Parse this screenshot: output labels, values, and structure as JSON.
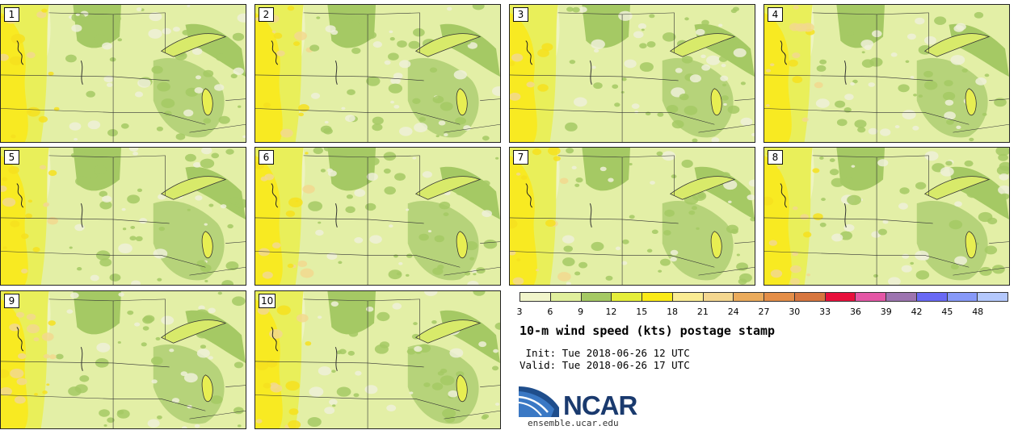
{
  "panels": [
    {
      "label": "1",
      "seed": 11
    },
    {
      "label": "2",
      "seed": 23
    },
    {
      "label": "3",
      "seed": 37
    },
    {
      "label": "4",
      "seed": 41
    },
    {
      "label": "5",
      "seed": 53
    },
    {
      "label": "6",
      "seed": 67
    },
    {
      "label": "7",
      "seed": 71
    },
    {
      "label": "8",
      "seed": 89
    },
    {
      "label": "9",
      "seed": 97
    },
    {
      "label": "10",
      "seed": 103
    }
  ],
  "colorbar": {
    "colors": [
      "#f1f5cb",
      "#e0ef9d",
      "#a5c964",
      "#e5ee3a",
      "#fbeb17",
      "#faec93",
      "#f4d790",
      "#ebab5c",
      "#e48e48",
      "#d7763f",
      "#e8103c",
      "#e457a6",
      "#9d74b0",
      "#6969f5",
      "#8799f8",
      "#b4c8fc"
    ],
    "ticks": [
      "3",
      "6",
      "9",
      "12",
      "15",
      "18",
      "21",
      "24",
      "27",
      "30",
      "33",
      "36",
      "39",
      "42",
      "45",
      "48"
    ]
  },
  "title": "10-m wind speed (kts) postage stamp",
  "init_line": " Init: Tue 2018-06-26 12 UTC",
  "valid_line": "Valid: Tue 2018-06-26 17 UTC",
  "logo": {
    "text": "NCAR",
    "url": "ensemble.ucar.edu"
  }
}
